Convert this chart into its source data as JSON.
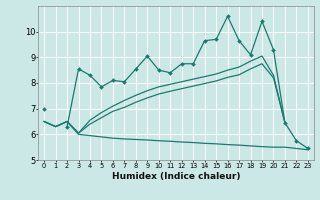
{
  "xlabel": "Humidex (Indice chaleur)",
  "bg_color": "#cce8e6",
  "line_color": "#1a7a6e",
  "grid_color": "#ffffff",
  "x": [
    0,
    1,
    2,
    3,
    4,
    5,
    6,
    7,
    8,
    9,
    10,
    11,
    12,
    13,
    14,
    15,
    16,
    17,
    18,
    19,
    20,
    21,
    22,
    23
  ],
  "series1": [
    7.0,
    null,
    6.3,
    8.55,
    8.3,
    7.85,
    8.1,
    8.05,
    8.55,
    9.05,
    8.5,
    8.4,
    8.75,
    8.75,
    9.65,
    9.7,
    10.6,
    9.65,
    9.1,
    10.4,
    9.3,
    6.45,
    5.75,
    5.45
  ],
  "series2": [
    6.5,
    6.3,
    6.5,
    6.0,
    5.95,
    5.9,
    5.85,
    5.82,
    5.8,
    5.78,
    5.75,
    5.73,
    5.7,
    5.68,
    5.65,
    5.63,
    5.6,
    5.58,
    5.55,
    5.52,
    5.5,
    5.5,
    5.45,
    5.4
  ],
  "series3": [
    6.5,
    6.3,
    6.5,
    6.05,
    6.4,
    6.65,
    6.9,
    7.05,
    7.25,
    7.42,
    7.57,
    7.68,
    7.78,
    7.88,
    7.98,
    8.08,
    8.22,
    8.32,
    8.55,
    8.75,
    8.2,
    6.45,
    null,
    null
  ],
  "series4": [
    6.5,
    6.3,
    6.5,
    6.05,
    6.55,
    6.85,
    7.1,
    7.32,
    7.52,
    7.7,
    7.85,
    7.95,
    8.05,
    8.15,
    8.25,
    8.35,
    8.5,
    8.62,
    8.85,
    9.05,
    8.3,
    6.45,
    null,
    null
  ],
  "ylim": [
    5.0,
    11.0
  ],
  "xlim": [
    -0.5,
    23.5
  ],
  "yticks": [
    5,
    6,
    7,
    8,
    9,
    10
  ],
  "xtick_labels": [
    "0",
    "1",
    "2",
    "3",
    "4",
    "5",
    "6",
    "7",
    "8",
    "9",
    "10",
    "11",
    "12",
    "13",
    "14",
    "15",
    "16",
    "17",
    "18",
    "19",
    "20",
    "21",
    "22",
    "23"
  ],
  "xlabel_fontsize": 6.5,
  "ytick_fontsize": 6,
  "xtick_fontsize": 4.8
}
